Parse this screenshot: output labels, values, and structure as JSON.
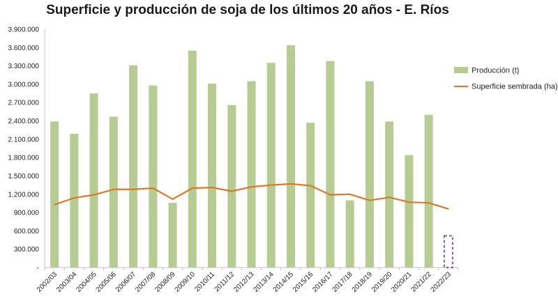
{
  "chart_data": {
    "type": "bar",
    "title": "Superficie y producción de soja de los últimos 20 años - E. Ríos",
    "categories": [
      "2002/03",
      "2003/04",
      "2004/05",
      "2005/06",
      "2006/07",
      "2007/08",
      "2008/09",
      "2009/10",
      "2010/11",
      "2011/12",
      "2012/13",
      "2013/14",
      "2014/15",
      "2015/16",
      "2016/17",
      "2017/18",
      "2018/19",
      "2019/20",
      "2020/21",
      "2021/22",
      "2022/23"
    ],
    "series": [
      {
        "name": "Producción (t)",
        "type": "bar",
        "color": "#b6cc93",
        "values": [
          2390000,
          2190000,
          2850000,
          2470000,
          3310000,
          2980000,
          1060000,
          3550000,
          3010000,
          2660000,
          3050000,
          3350000,
          3640000,
          2370000,
          3380000,
          1100000,
          3050000,
          2390000,
          1840000,
          2500000,
          520000
        ]
      },
      {
        "name": "Superficie sembrada (ha)",
        "type": "line",
        "color": "#d9792b",
        "values": [
          1030000,
          1140000,
          1190000,
          1280000,
          1280000,
          1300000,
          1120000,
          1300000,
          1310000,
          1250000,
          1320000,
          1350000,
          1370000,
          1340000,
          1190000,
          1200000,
          1100000,
          1150000,
          1070000,
          1060000,
          960000
        ]
      }
    ],
    "estimated_last_bar": {
      "category": "2022/23",
      "style": "dashed-outline",
      "color": "#8064a2"
    },
    "yticks": [
      "-",
      "300.000",
      "600.000",
      "900.000",
      "1.200.000",
      "1.500.000",
      "1.800.000",
      "2.100.000",
      "2.400.000",
      "2.700.000",
      "3.000.000",
      "3.300.000",
      "3.600.000",
      "3.900.000"
    ],
    "ylim": [
      0,
      3900000
    ],
    "legend_position": "right",
    "grid": false
  }
}
